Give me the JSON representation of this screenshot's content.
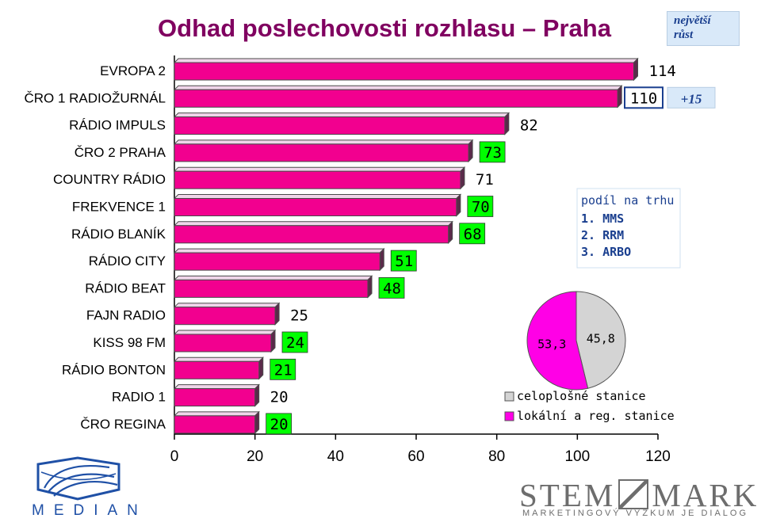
{
  "title": "Odhad poslechovosti rozhlasu – Praha",
  "badge": {
    "line1": "největší",
    "line2": "růst"
  },
  "chart_data": {
    "type": "bar",
    "orientation": "horizontal",
    "categories": [
      "EVROPA 2",
      "ČRO 1 RADIOŽURNÁL",
      "RÁDIO IMPULS",
      "ČRO 2 PRAHA",
      "COUNTRY RÁDIO",
      "FREKVENCE 1",
      "RÁDIO BLANÍK",
      "RÁDIO CITY",
      "RÁDIO BEAT",
      "FAJN RADIO",
      "KISS 98 FM",
      "RÁDIO BONTON",
      "RADIO 1",
      "ČRO REGINA"
    ],
    "values": [
      114,
      110,
      82,
      73,
      71,
      70,
      68,
      51,
      48,
      25,
      24,
      21,
      20,
      20
    ],
    "market_share": [
      "MMS",
      "MMS",
      "MMS",
      "RRM",
      "RRM",
      "RRM",
      "RRM",
      "RRM",
      "RRM",
      "ARBO",
      "ARBO",
      "ARBO",
      "ARBO",
      "ARBO"
    ],
    "highlight_growth": {
      "category": "ČRO 1 RADIOŽURNÁL",
      "label": "+15"
    },
    "xlim": [
      0,
      120
    ],
    "xticks": [
      "0",
      "20",
      "40",
      "60",
      "80",
      "100",
      "120"
    ],
    "grid": false,
    "bar_color": "#f2008f",
    "label_styles": {
      "green_box": "#00ff00",
      "blue_outline": "#1a3f8f"
    }
  },
  "market_legend": {
    "title": "podíl na trhu",
    "items": [
      "1. MMS",
      "2. RRM",
      "3. ARBO"
    ]
  },
  "pie": {
    "type": "pie",
    "slices": [
      {
        "name": "celoplošné stanice",
        "value": 45.8,
        "label": "45,8",
        "color": "#d4d4d4"
      },
      {
        "name": "lokální a reg. stanice",
        "value": 53.3,
        "label": "53,3",
        "color": "#ff00e6"
      }
    ]
  },
  "logos": {
    "median": "MEDIAN",
    "stem": "STEM",
    "mark": "MARK",
    "stem_sub": "MARKETINGOVÝ VÝZKUM JE DIALOG"
  },
  "colors": {
    "title": "#800060",
    "legend_text": "#1a3f8f",
    "axis_text": "#000000"
  }
}
